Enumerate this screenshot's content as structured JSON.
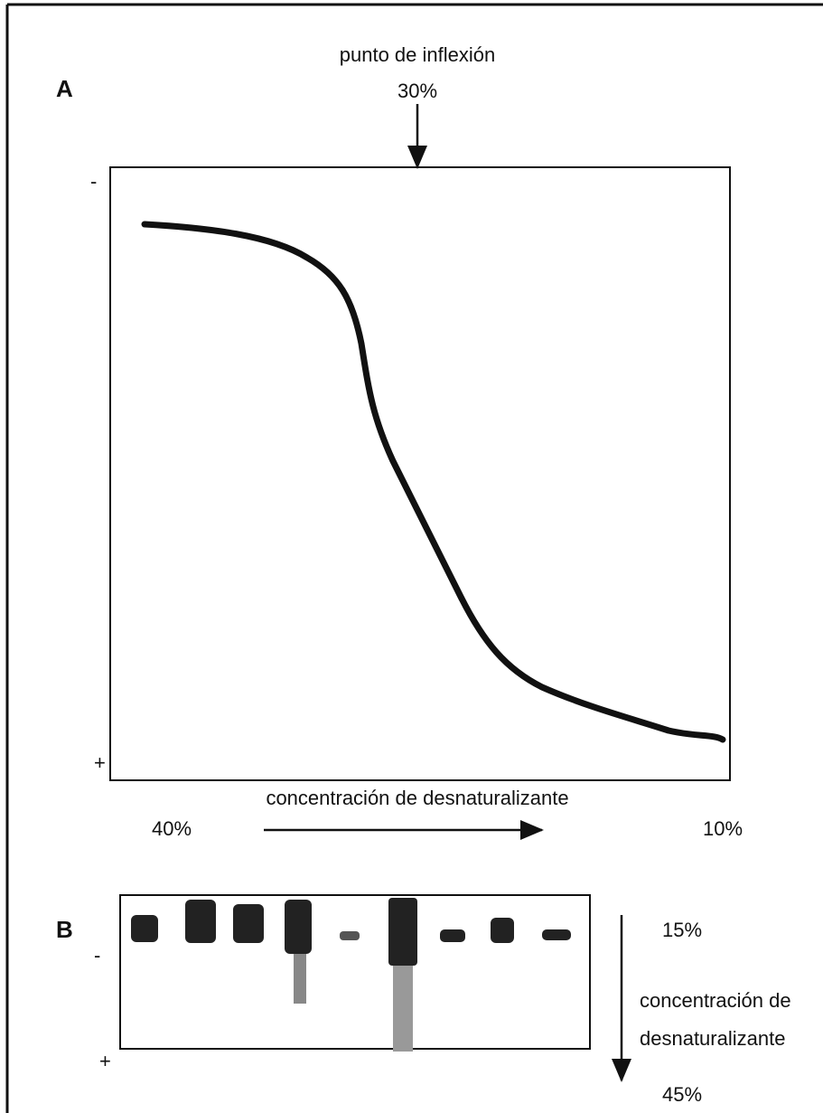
{
  "panel_a": {
    "label": "A",
    "annotation": "punto de inflexión",
    "inflection_value": "30%",
    "pole_top": "-",
    "pole_bottom": "+",
    "axis_label": "concentración de  desnaturalizante",
    "left_value": "40%",
    "right_value": "10%"
  },
  "panel_b": {
    "label": "B",
    "top_value": "15%",
    "pole_top": "-",
    "pole_bottom": "+",
    "axis_label_line1": "concentración de",
    "axis_label_line2": "desnaturalizante",
    "bottom_value": "45%"
  }
}
